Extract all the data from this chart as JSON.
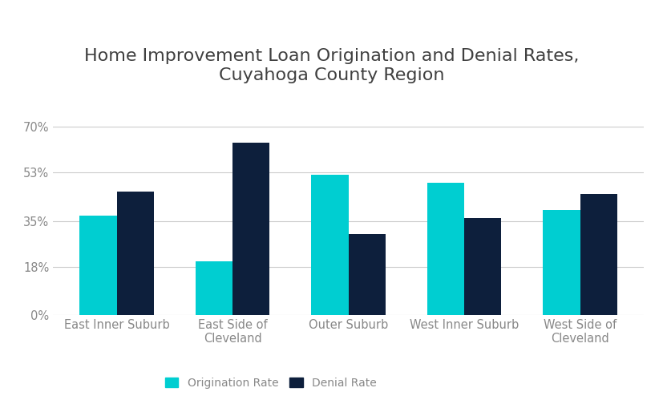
{
  "title": "Home Improvement Loan Origination and Denial Rates,\nCuyahoga County Region",
  "categories": [
    "East Inner Suburb",
    "East Side of\nCleveland",
    "Outer Suburb",
    "West Inner Suburb",
    "West Side of\nCleveland"
  ],
  "origination_rates": [
    37,
    20,
    52,
    49,
    39
  ],
  "denial_rates": [
    46,
    64,
    30,
    36,
    45
  ],
  "origination_color": "#00CED1",
  "denial_color": "#0D1F3C",
  "yticks": [
    0,
    18,
    35,
    53,
    70
  ],
  "ylim": [
    0,
    75
  ],
  "legend_labels": [
    "Origination Rate",
    "Denial Rate"
  ],
  "background_color": "#ffffff",
  "bar_width": 0.32,
  "title_fontsize": 16,
  "tick_fontsize": 10.5,
  "legend_fontsize": 10,
  "title_color": "#404040"
}
